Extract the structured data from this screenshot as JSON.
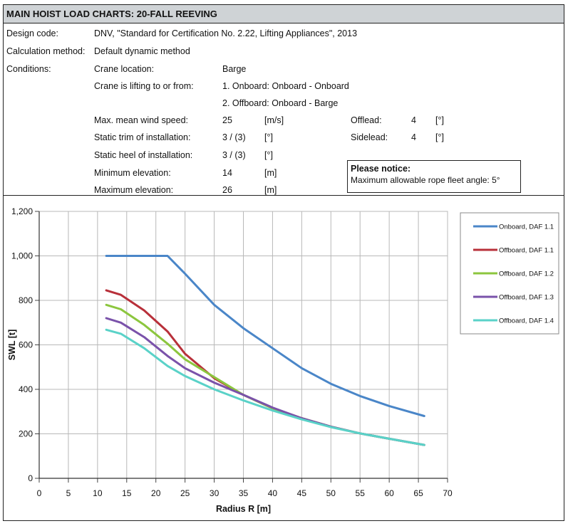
{
  "header": {
    "title": "MAIN HOIST LOAD CHARTS:  20-FALL REEVING"
  },
  "info": {
    "design_code_label": "Design code:",
    "design_code_value": "DNV, \"Standard for Certification No. 2.22, Lifting Appliances\", 2013",
    "calc_method_label": "Calculation method:",
    "calc_method_value": "Default dynamic method",
    "conditions_label": "Conditions:",
    "crane_location_label": "Crane location:",
    "crane_location_value": "Barge",
    "lifting_label": "Crane is lifting to or from:",
    "lifting_value_1": "1. Onboard: Onboard - Onboard",
    "lifting_value_2": "2. Offboard: Onboard - Barge",
    "wind_label": "Max. mean wind speed:",
    "wind_value": "25",
    "wind_unit": "[m/s]",
    "trim_label": "Static trim of installation:",
    "trim_value": "3 / (3)",
    "trim_unit": "[°]",
    "heel_label": "Static heel of installation:",
    "heel_value": "3 / (3)",
    "heel_unit": "[°]",
    "min_elev_label": "Minimum elevation:",
    "min_elev_value": "14",
    "min_elev_unit": "[m]",
    "max_elev_label": "Maximum elevation:",
    "max_elev_value": "26",
    "max_elev_unit": "[m]",
    "offlead_label": "Offlead:",
    "offlead_value": "4",
    "offlead_unit": "[°]",
    "sidelead_label": "Sidelead:",
    "sidelead_value": "4",
    "sidelead_unit": "[°]"
  },
  "notice": {
    "title": "Please notice:",
    "text": "Maximum allowable rope fleet angle: 5°"
  },
  "chart_data": {
    "type": "line",
    "xlabel": "Radius R [m]",
    "ylabel": "SWL [t]",
    "xlim": [
      0,
      70
    ],
    "ylim": [
      0,
      1200
    ],
    "xticks": [
      0,
      5,
      10,
      15,
      20,
      25,
      30,
      35,
      40,
      45,
      50,
      55,
      60,
      65,
      70
    ],
    "yticks": [
      0,
      200,
      400,
      600,
      800,
      1000,
      1200
    ],
    "ytick_labels": [
      "0",
      "200",
      "400",
      "600",
      "800",
      "1,000",
      "1,200"
    ],
    "grid": true,
    "legend_position": "right",
    "series": [
      {
        "name": "Onboard, DAF 1.1",
        "color": "#4a86c8",
        "x": [
          11.5,
          14,
          18,
          22,
          25,
          30,
          35,
          40,
          45,
          50,
          55,
          60,
          66
        ],
        "y": [
          1000,
          1000,
          1000,
          1000,
          920,
          780,
          675,
          585,
          495,
          425,
          370,
          325,
          280
        ]
      },
      {
        "name": "Offboard, DAF 1.1",
        "color": "#b8303a",
        "x": [
          11.5,
          14,
          18,
          22,
          25,
          30,
          35,
          40,
          45,
          50,
          55,
          60,
          66
        ],
        "y": [
          845,
          825,
          755,
          660,
          560,
          450,
          375,
          315,
          270,
          232,
          202,
          178,
          150
        ]
      },
      {
        "name": "Offboard, DAF 1.2",
        "color": "#8cc63e",
        "x": [
          11.5,
          14,
          18,
          22,
          25,
          30,
          35,
          40,
          45,
          50,
          55,
          60,
          66
        ],
        "y": [
          780,
          760,
          690,
          605,
          535,
          455,
          375,
          315,
          270,
          232,
          202,
          178,
          150
        ]
      },
      {
        "name": "Offboard, DAF 1.3",
        "color": "#7a52aa",
        "x": [
          11.5,
          14,
          18,
          22,
          25,
          30,
          35,
          40,
          45,
          50,
          55,
          60,
          66
        ],
        "y": [
          720,
          700,
          635,
          550,
          495,
          430,
          375,
          318,
          270,
          232,
          202,
          178,
          150
        ]
      },
      {
        "name": "Offboard, DAF 1.4",
        "color": "#5ad2c8",
        "x": [
          11.5,
          14,
          18,
          22,
          25,
          30,
          35,
          40,
          45,
          50,
          55,
          60,
          66
        ],
        "y": [
          668,
          650,
          585,
          505,
          460,
          400,
          350,
          305,
          265,
          230,
          202,
          178,
          150
        ]
      }
    ]
  }
}
